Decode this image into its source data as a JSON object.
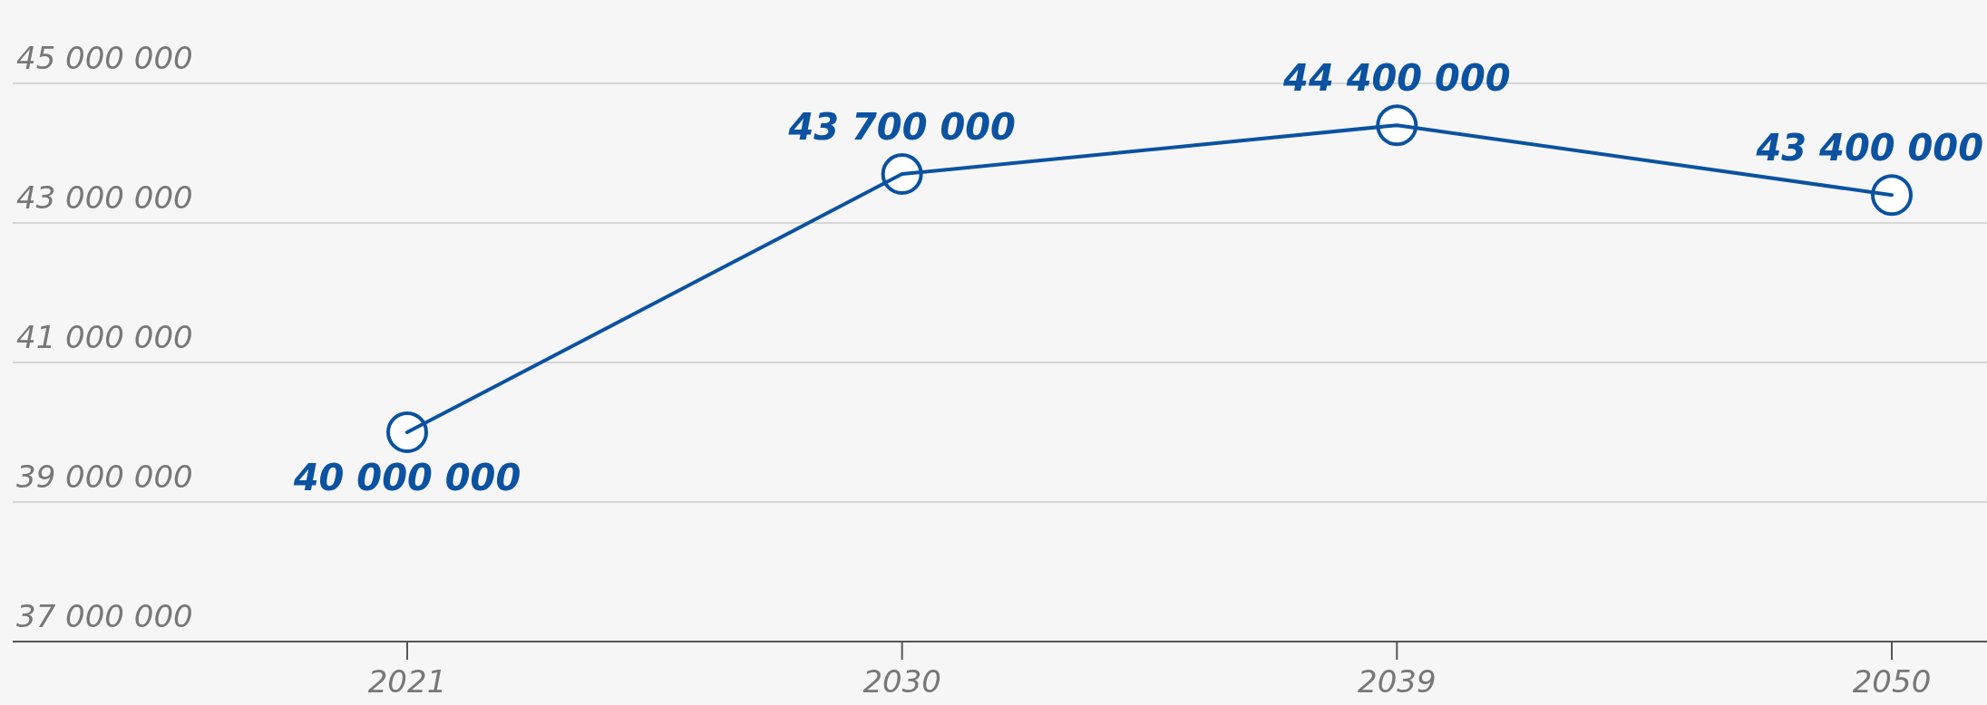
{
  "chart_data": {
    "type": "line",
    "categories": [
      "2021",
      "2030",
      "2039",
      "2050"
    ],
    "series": [
      {
        "color": "#0b52a0",
        "values": [
          40000000,
          43700000,
          44400000,
          43400000
        ],
        "value_labels": [
          "40 000 000",
          "43 700 000",
          "44 400 000",
          "43 400 000"
        ]
      }
    ],
    "ylim": [
      37000000,
      45000000
    ],
    "yticks": [
      {
        "value": 37000000,
        "label": "37 000 000"
      },
      {
        "value": 39000000,
        "label": "39 000 000"
      },
      {
        "value": 41000000,
        "label": "41 000 000"
      },
      {
        "value": 43000000,
        "label": "43 000 000"
      },
      {
        "value": 45000000,
        "label": "45 000 000"
      }
    ],
    "grid": "y",
    "marker": "circle",
    "line_style": "solid"
  }
}
